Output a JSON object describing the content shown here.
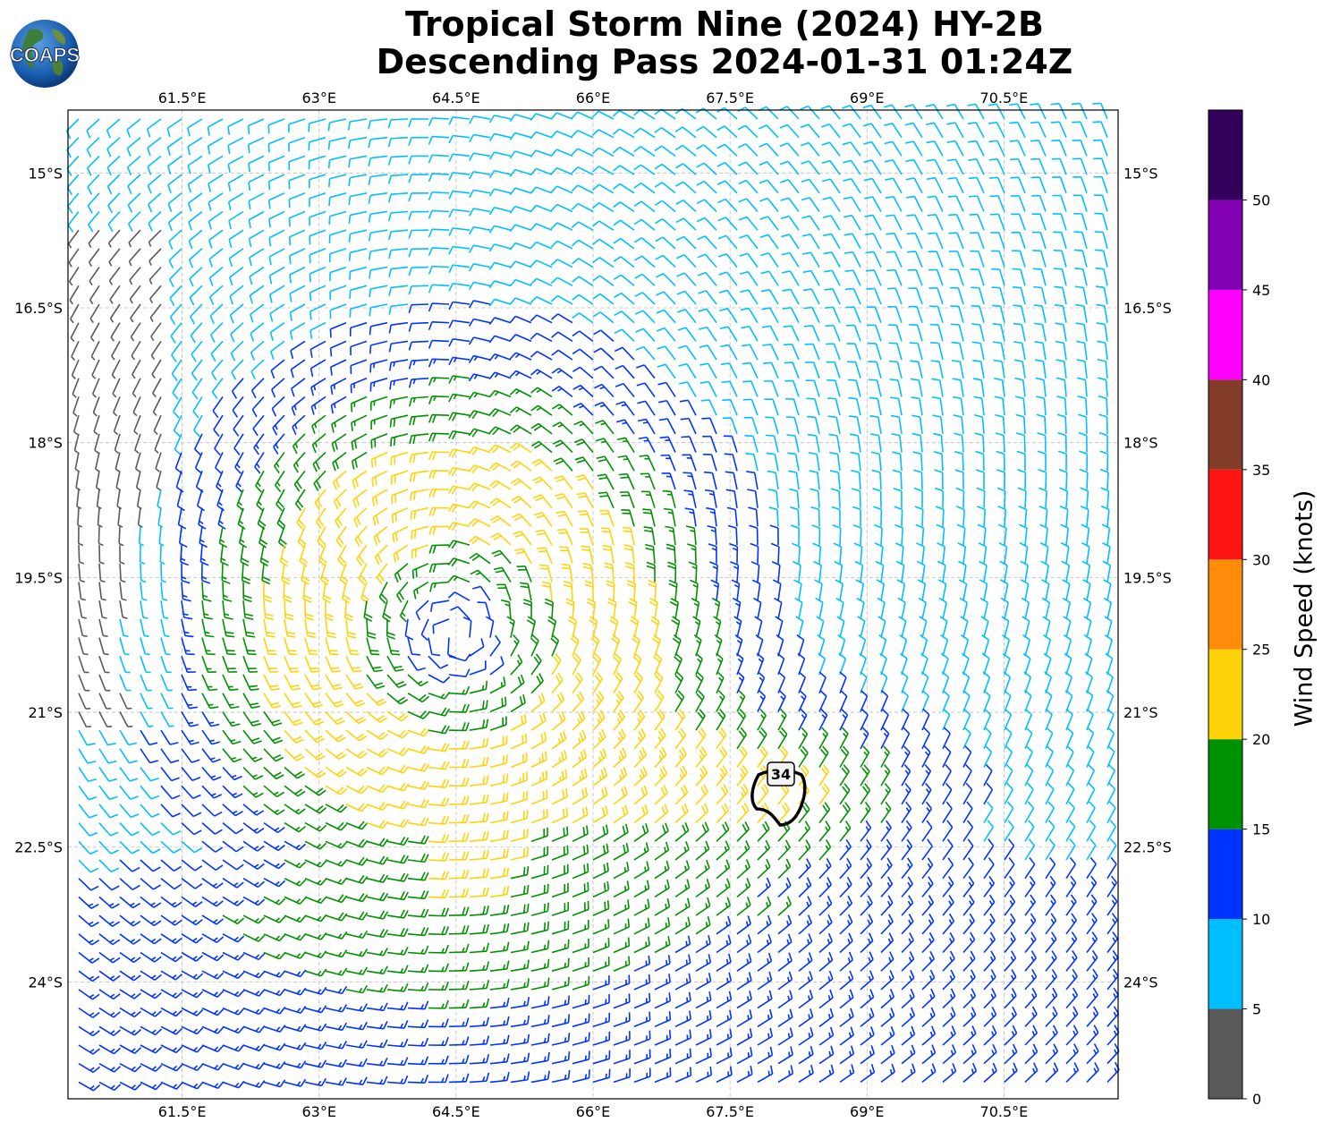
{
  "title": {
    "line1": "Tropical Storm Nine (2024) HY-2B",
    "line2": "Descending Pass 2024-01-31 01:24Z"
  },
  "logo": {
    "text": "COAPS",
    "icon": "globe-logo-icon"
  },
  "map": {
    "lon_ticks": [
      "61.5°E",
      "63°E",
      "64.5°E",
      "66°E",
      "67.5°E",
      "69°E",
      "70.5°E"
    ],
    "lon_values": [
      61.5,
      63,
      64.5,
      66,
      67.5,
      69,
      70.5
    ],
    "lat_ticks": [
      "15°S",
      "16.5°S",
      "18°S",
      "19.5°S",
      "21°S",
      "22.5°S",
      "24°S"
    ],
    "lat_values": [
      -15,
      -16.5,
      -18,
      -19.5,
      -21,
      -22.5,
      -24
    ],
    "lon_range": [
      60.25,
      71.75
    ],
    "lat_range": [
      -25.3,
      -14.3
    ],
    "grid": true,
    "contour_label": "34",
    "storm_center": {
      "lon": 64.5,
      "lat": -20.2
    }
  },
  "colorbar": {
    "label": "Wind Speed (knots)",
    "ticks": [
      "0",
      "5",
      "10",
      "15",
      "20",
      "25",
      "30",
      "35",
      "40",
      "45",
      "50"
    ],
    "bins": [
      {
        "range": [
          0,
          5
        ],
        "color": "#595959"
      },
      {
        "range": [
          5,
          10
        ],
        "color": "#00bfff"
      },
      {
        "range": [
          10,
          15
        ],
        "color": "#0033ff"
      },
      {
        "range": [
          15,
          20
        ],
        "color": "#009100"
      },
      {
        "range": [
          20,
          25
        ],
        "color": "#ffd20a"
      },
      {
        "range": [
          25,
          30
        ],
        "color": "#ff8c0a"
      },
      {
        "range": [
          30,
          35
        ],
        "color": "#ff1414"
      },
      {
        "range": [
          35,
          40
        ],
        "color": "#823c28"
      },
      {
        "range": [
          40,
          45
        ],
        "color": "#ff00ff"
      },
      {
        "range": [
          45,
          50
        ],
        "color": "#8200b4"
      },
      {
        "range": [
          50,
          55
        ],
        "color": "#32005a"
      }
    ]
  }
}
